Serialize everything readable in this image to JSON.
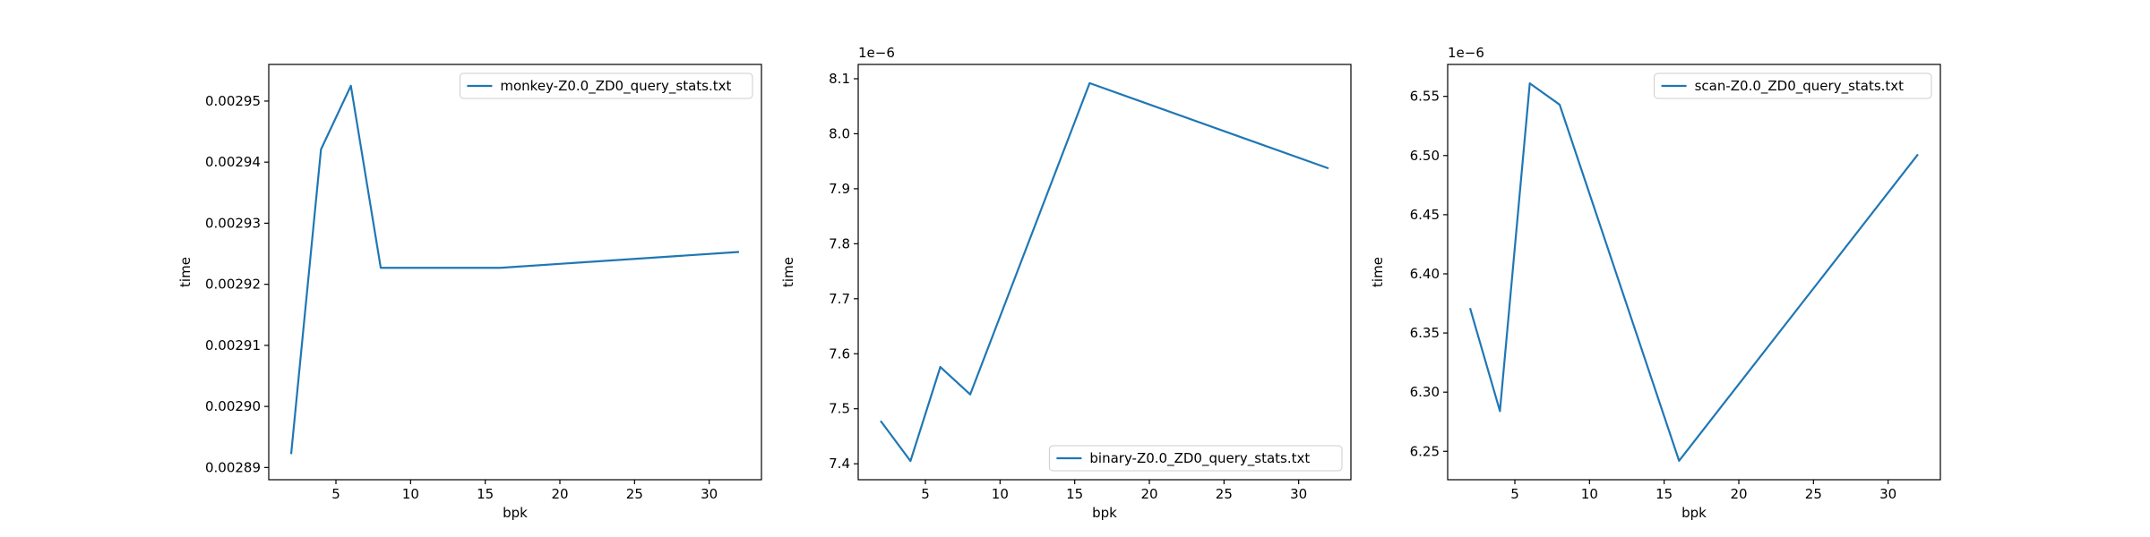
{
  "chart_data": [
    {
      "type": "line",
      "x": [
        2,
        4,
        6,
        8,
        16,
        32
      ],
      "series": [
        {
          "name": "monkey-Z0.0_ZD0_query_stats.txt",
          "values": [
            0.0028922,
            0.0029421,
            0.0029525,
            0.0029227,
            0.0029227,
            0.0029253
          ]
        }
      ],
      "xlabel": "bpk",
      "ylabel": "time",
      "xlim": [
        0.5,
        33.5
      ],
      "ylim": [
        0.002888,
        0.002956
      ],
      "xticks": [
        5,
        10,
        15,
        20,
        25,
        30
      ],
      "yticks": [
        0.00289,
        0.0029,
        0.00291,
        0.00292,
        0.00293,
        0.00294,
        0.00295
      ],
      "ytick_labels": [
        "0.00289",
        "0.00290",
        "0.00291",
        "0.00292",
        "0.00293",
        "0.00294",
        "0.00295"
      ],
      "offset": "",
      "legend": "upper right",
      "color": "#1f77b4"
    },
    {
      "type": "line",
      "x": [
        2,
        4,
        6,
        8,
        16,
        32
      ],
      "series": [
        {
          "name": "binary-Z0.0_ZD0_query_stats.txt",
          "values": [
            7.478,
            7.405,
            7.576,
            7.526,
            8.092,
            7.937
          ]
        }
      ],
      "xlabel": "bpk",
      "ylabel": "time",
      "xlim": [
        0.5,
        33.5
      ],
      "ylim": [
        7.371,
        8.126
      ],
      "xticks": [
        5,
        10,
        15,
        20,
        25,
        30
      ],
      "yticks": [
        7.4,
        7.5,
        7.6,
        7.7,
        7.8,
        7.9,
        8.0,
        8.1
      ],
      "ytick_labels": [
        "7.4",
        "7.5",
        "7.6",
        "7.7",
        "7.8",
        "7.9",
        "8.0",
        "8.1"
      ],
      "offset": "1e−6",
      "legend": "lower right",
      "color": "#1f77b4"
    },
    {
      "type": "line",
      "x": [
        2,
        4,
        6,
        8,
        16,
        32
      ],
      "series": [
        {
          "name": "scan-Z0.0_ZD0_query_stats.txt",
          "values": [
            6.371,
            6.284,
            6.561,
            6.543,
            6.242,
            6.501
          ]
        }
      ],
      "xlabel": "bpk",
      "ylabel": "time",
      "xlim": [
        0.5,
        33.5
      ],
      "ylim": [
        6.226,
        6.577
      ],
      "xticks": [
        5,
        10,
        15,
        20,
        25,
        30
      ],
      "yticks": [
        6.25,
        6.3,
        6.35,
        6.4,
        6.45,
        6.5,
        6.55
      ],
      "ytick_labels": [
        "6.25",
        "6.30",
        "6.35",
        "6.40",
        "6.45",
        "6.50",
        "6.55"
      ],
      "offset": "1e−6",
      "legend": "upper right",
      "color": "#1f77b4"
    }
  ]
}
